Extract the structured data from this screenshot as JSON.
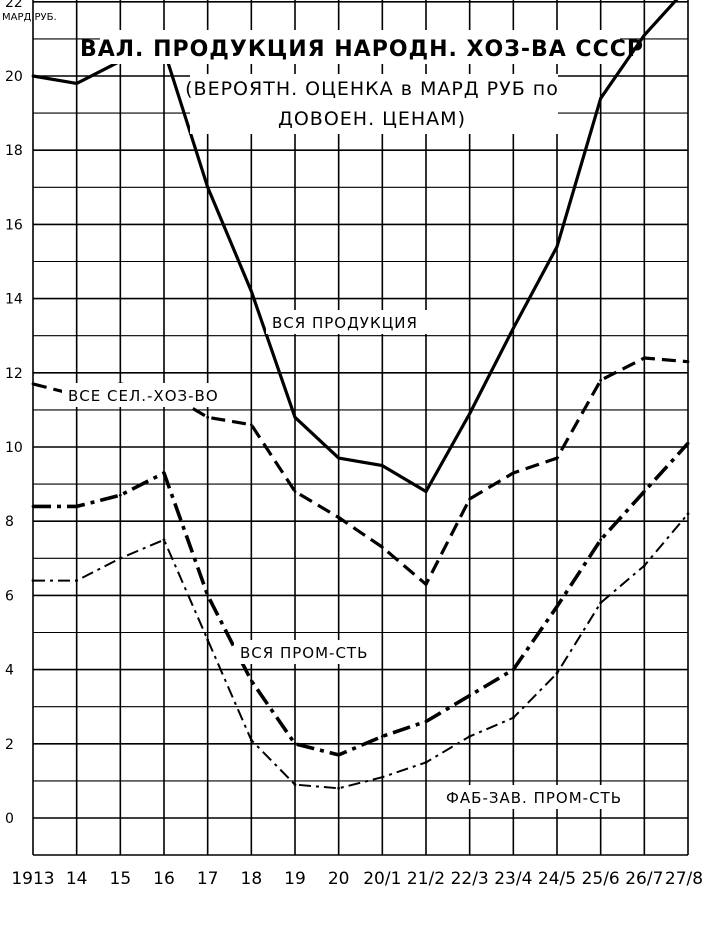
{
  "chart_data": {
    "type": "line",
    "title": "ВАЛ. ПРОДУКЦИЯ НАРОДН. ХОЗ-ВА СССР",
    "subtitle_line1": "(ВЕРОЯТН. ОЦЕНКА в МАРД РУБ по",
    "subtitle_line2": "ДОВОЕН. ЦЕНАМ)",
    "ylabel": "МАРД.РУБ.",
    "xlabel": "",
    "ylim": [
      0,
      22.3
    ],
    "yticks": [
      "0",
      "2",
      "4",
      "6",
      "8",
      "10",
      "12",
      "14",
      "16",
      "18",
      "20",
      "22"
    ],
    "categories": [
      "1913",
      "14",
      "15",
      "16",
      "17",
      "18",
      "19",
      "20",
      "20/1",
      "21/2",
      "22/3",
      "23/4",
      "24/5",
      "25/6",
      "26/7",
      "27/8"
    ],
    "grid": true,
    "series": [
      {
        "name": "ВСЯ ПРОДУКЦИЯ",
        "style": "solid",
        "values": [
          20.0,
          19.8,
          20.4,
          20.7,
          17.0,
          14.2,
          10.8,
          9.7,
          9.5,
          8.8,
          10.9,
          13.2,
          15.4,
          19.4,
          21.1,
          22.4
        ]
      },
      {
        "name": "ВСЕ СЕЛ.-ХОЗ-ВО",
        "style": "dashed",
        "values": [
          11.7,
          11.4,
          11.7,
          11.5,
          10.8,
          10.6,
          8.8,
          8.1,
          7.3,
          6.3,
          8.6,
          9.3,
          9.7,
          11.8,
          12.4,
          12.3
        ]
      },
      {
        "name": "ВСЯ ПРОМ-СТЬ",
        "style": "dash-dot-heavy",
        "values": [
          8.4,
          8.4,
          8.7,
          9.3,
          6.0,
          3.7,
          2.0,
          1.7,
          2.2,
          2.6,
          3.3,
          4.0,
          5.7,
          7.5,
          8.8,
          10.1
        ]
      },
      {
        "name": "ФАБ-ЗАВ. ПРОМ-СТЬ",
        "style": "dash-dot-thin",
        "values": [
          6.4,
          6.4,
          7.0,
          7.5,
          4.8,
          2.1,
          0.9,
          0.8,
          1.1,
          1.5,
          2.2,
          2.7,
          3.9,
          5.8,
          6.8,
          8.2
        ]
      }
    ]
  }
}
